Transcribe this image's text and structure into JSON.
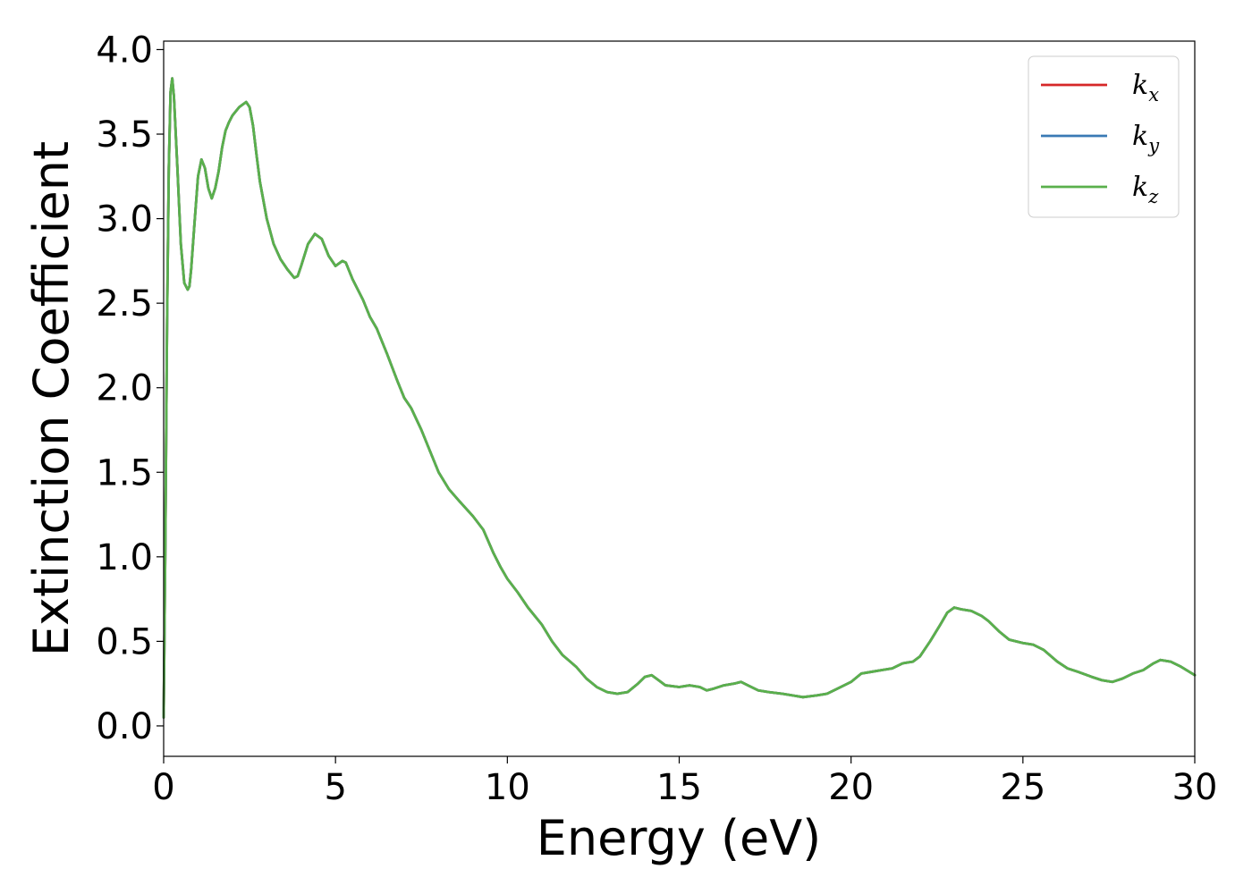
{
  "chart_data": {
    "type": "line",
    "xlabel": "Energy (eV)",
    "ylabel": "Extinction Coefficient",
    "xlim": [
      0,
      30
    ],
    "ylim": [
      -0.18,
      4.05
    ],
    "xticks": [
      0,
      5,
      10,
      15,
      20,
      25,
      30
    ],
    "xtick_labels": [
      "0",
      "5",
      "10",
      "15",
      "20",
      "25",
      "30"
    ],
    "yticks": [
      0.0,
      0.5,
      1.0,
      1.5,
      2.0,
      2.5,
      3.0,
      3.5,
      4.0
    ],
    "ytick_labels": [
      "0.0",
      "0.5",
      "1.0",
      "1.5",
      "2.0",
      "2.5",
      "3.0",
      "3.5",
      "4.0"
    ],
    "grid": false,
    "legend_position": "top-right",
    "x": [
      0,
      0.05,
      0.1,
      0.15,
      0.2,
      0.25,
      0.3,
      0.4,
      0.5,
      0.6,
      0.7,
      0.75,
      0.8,
      0.9,
      1.0,
      1.1,
      1.2,
      1.3,
      1.4,
      1.5,
      1.6,
      1.7,
      1.8,
      1.9,
      2.0,
      2.2,
      2.4,
      2.5,
      2.6,
      2.7,
      2.8,
      3.0,
      3.2,
      3.4,
      3.6,
      3.8,
      3.9,
      4.0,
      4.2,
      4.4,
      4.6,
      4.8,
      5.0,
      5.2,
      5.3,
      5.5,
      5.8,
      6.0,
      6.2,
      6.5,
      6.8,
      7.0,
      7.2,
      7.5,
      7.8,
      8.0,
      8.3,
      8.6,
      9.0,
      9.3,
      9.6,
      9.8,
      10.0,
      10.3,
      10.6,
      11.0,
      11.3,
      11.6,
      12.0,
      12.3,
      12.6,
      12.9,
      13.2,
      13.5,
      13.8,
      14.0,
      14.2,
      14.4,
      14.6,
      15.0,
      15.3,
      15.6,
      15.8,
      16.0,
      16.3,
      16.6,
      16.8,
      17.0,
      17.3,
      17.6,
      18.0,
      18.3,
      18.6,
      19.0,
      19.3,
      19.6,
      20.0,
      20.3,
      20.6,
      20.9,
      21.2,
      21.5,
      21.8,
      22.0,
      22.3,
      22.6,
      22.8,
      23.0,
      23.2,
      23.5,
      23.8,
      24.0,
      24.3,
      24.6,
      25.0,
      25.3,
      25.6,
      26.0,
      26.3,
      26.6,
      27.0,
      27.3,
      27.6,
      27.9,
      28.2,
      28.5,
      28.8,
      29.0,
      29.3,
      29.6,
      30.0
    ],
    "series": [
      {
        "name": "k_x",
        "label_base": "k",
        "label_sub": "x",
        "color": "#d62728",
        "values": [
          0.05,
          1.1,
          2.4,
          3.3,
          3.75,
          3.83,
          3.72,
          3.3,
          2.85,
          2.62,
          2.58,
          2.6,
          2.7,
          2.98,
          3.25,
          3.35,
          3.3,
          3.18,
          3.12,
          3.18,
          3.28,
          3.42,
          3.52,
          3.57,
          3.61,
          3.66,
          3.69,
          3.66,
          3.55,
          3.38,
          3.22,
          3.0,
          2.85,
          2.76,
          2.7,
          2.65,
          2.66,
          2.72,
          2.85,
          2.91,
          2.88,
          2.78,
          2.72,
          2.75,
          2.74,
          2.64,
          2.52,
          2.42,
          2.35,
          2.2,
          2.04,
          1.94,
          1.88,
          1.75,
          1.6,
          1.5,
          1.4,
          1.33,
          1.24,
          1.16,
          1.02,
          0.94,
          0.87,
          0.79,
          0.7,
          0.6,
          0.5,
          0.42,
          0.35,
          0.28,
          0.23,
          0.2,
          0.19,
          0.2,
          0.25,
          0.29,
          0.3,
          0.27,
          0.24,
          0.23,
          0.24,
          0.23,
          0.21,
          0.22,
          0.24,
          0.25,
          0.26,
          0.24,
          0.21,
          0.2,
          0.19,
          0.18,
          0.17,
          0.18,
          0.19,
          0.22,
          0.26,
          0.31,
          0.32,
          0.33,
          0.34,
          0.37,
          0.38,
          0.41,
          0.5,
          0.6,
          0.67,
          0.7,
          0.69,
          0.68,
          0.65,
          0.62,
          0.56,
          0.51,
          0.49,
          0.48,
          0.45,
          0.38,
          0.34,
          0.32,
          0.29,
          0.27,
          0.26,
          0.28,
          0.31,
          0.33,
          0.37,
          0.39,
          0.38,
          0.35,
          0.3
        ]
      },
      {
        "name": "k_y",
        "label_base": "k",
        "label_sub": "y",
        "color": "#3a7ab5",
        "values": [
          0.05,
          1.1,
          2.4,
          3.3,
          3.75,
          3.83,
          3.72,
          3.3,
          2.85,
          2.62,
          2.58,
          2.6,
          2.7,
          2.98,
          3.25,
          3.35,
          3.3,
          3.18,
          3.12,
          3.18,
          3.28,
          3.42,
          3.52,
          3.57,
          3.61,
          3.66,
          3.69,
          3.66,
          3.55,
          3.38,
          3.22,
          3.0,
          2.85,
          2.76,
          2.7,
          2.65,
          2.66,
          2.72,
          2.85,
          2.91,
          2.88,
          2.78,
          2.72,
          2.75,
          2.74,
          2.64,
          2.52,
          2.42,
          2.35,
          2.2,
          2.04,
          1.94,
          1.88,
          1.75,
          1.6,
          1.5,
          1.4,
          1.33,
          1.24,
          1.16,
          1.02,
          0.94,
          0.87,
          0.79,
          0.7,
          0.6,
          0.5,
          0.42,
          0.35,
          0.28,
          0.23,
          0.2,
          0.19,
          0.2,
          0.25,
          0.29,
          0.3,
          0.27,
          0.24,
          0.23,
          0.24,
          0.23,
          0.21,
          0.22,
          0.24,
          0.25,
          0.26,
          0.24,
          0.21,
          0.2,
          0.19,
          0.18,
          0.17,
          0.18,
          0.19,
          0.22,
          0.26,
          0.31,
          0.32,
          0.33,
          0.34,
          0.37,
          0.38,
          0.41,
          0.5,
          0.6,
          0.67,
          0.7,
          0.69,
          0.68,
          0.65,
          0.62,
          0.56,
          0.51,
          0.49,
          0.48,
          0.45,
          0.38,
          0.34,
          0.32,
          0.29,
          0.27,
          0.26,
          0.28,
          0.31,
          0.33,
          0.37,
          0.39,
          0.38,
          0.35,
          0.3
        ]
      },
      {
        "name": "k_z",
        "label_base": "k",
        "label_sub": "z",
        "color": "#5ab04c",
        "values": [
          0.05,
          1.1,
          2.4,
          3.3,
          3.75,
          3.83,
          3.72,
          3.3,
          2.85,
          2.62,
          2.58,
          2.6,
          2.7,
          2.98,
          3.25,
          3.35,
          3.3,
          3.18,
          3.12,
          3.18,
          3.28,
          3.42,
          3.52,
          3.57,
          3.61,
          3.66,
          3.69,
          3.66,
          3.55,
          3.38,
          3.22,
          3.0,
          2.85,
          2.76,
          2.7,
          2.65,
          2.66,
          2.72,
          2.85,
          2.91,
          2.88,
          2.78,
          2.72,
          2.75,
          2.74,
          2.64,
          2.52,
          2.42,
          2.35,
          2.2,
          2.04,
          1.94,
          1.88,
          1.75,
          1.6,
          1.5,
          1.4,
          1.33,
          1.24,
          1.16,
          1.02,
          0.94,
          0.87,
          0.79,
          0.7,
          0.6,
          0.5,
          0.42,
          0.35,
          0.28,
          0.23,
          0.2,
          0.19,
          0.2,
          0.25,
          0.29,
          0.3,
          0.27,
          0.24,
          0.23,
          0.24,
          0.23,
          0.21,
          0.22,
          0.24,
          0.25,
          0.26,
          0.24,
          0.21,
          0.2,
          0.19,
          0.18,
          0.17,
          0.18,
          0.19,
          0.22,
          0.26,
          0.31,
          0.32,
          0.33,
          0.34,
          0.37,
          0.38,
          0.41,
          0.5,
          0.6,
          0.67,
          0.7,
          0.69,
          0.68,
          0.65,
          0.62,
          0.56,
          0.51,
          0.49,
          0.48,
          0.45,
          0.38,
          0.34,
          0.32,
          0.29,
          0.27,
          0.26,
          0.28,
          0.31,
          0.33,
          0.37,
          0.39,
          0.38,
          0.35,
          0.3
        ]
      }
    ]
  }
}
